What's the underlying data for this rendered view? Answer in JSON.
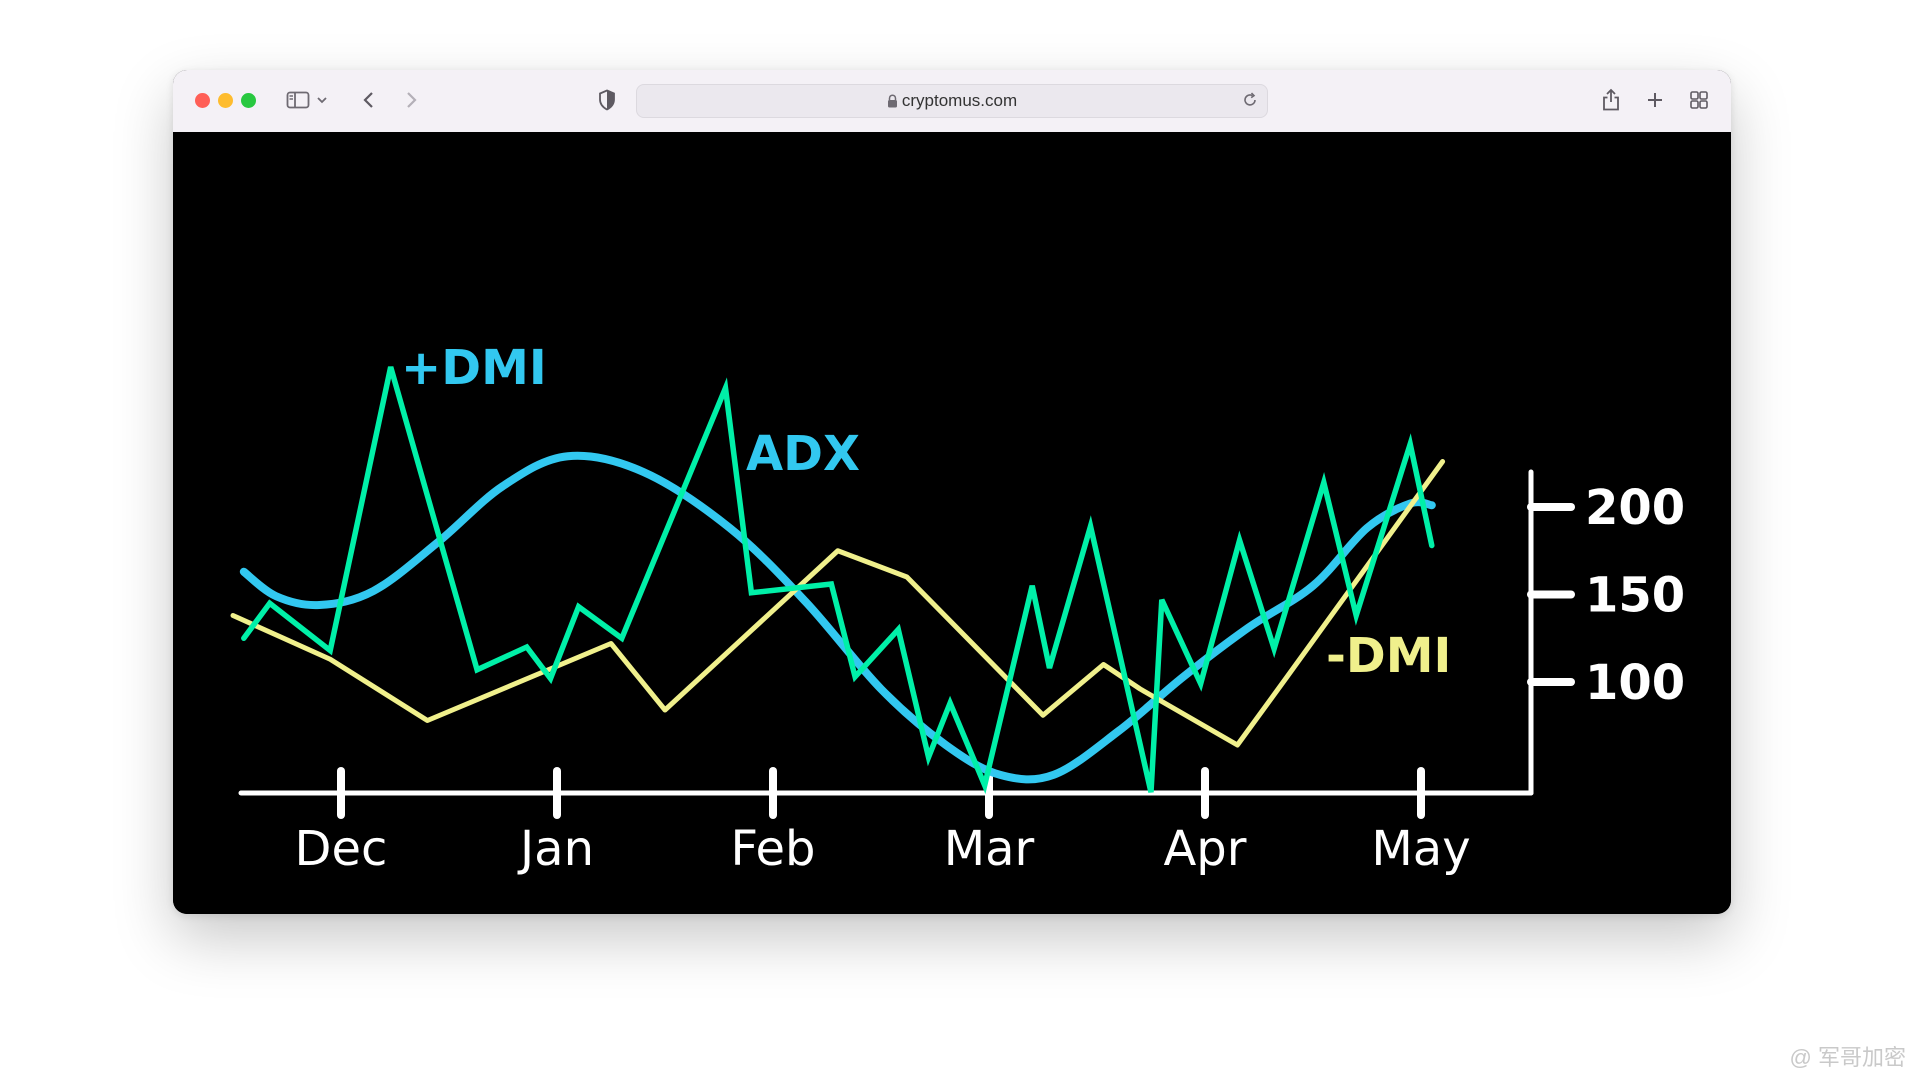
{
  "browser": {
    "url": "cryptomus.com",
    "icons": [
      "sidebar-icon",
      "chevron-down-icon",
      "back-icon",
      "forward-icon",
      "shield-icon",
      "lock-icon",
      "reload-icon",
      "share-icon",
      "new-tab-icon",
      "tab-overview-icon"
    ]
  },
  "chart_data": {
    "type": "line",
    "title": "",
    "xlabel": "",
    "ylabel": "",
    "x_ticks": [
      "Dec",
      "Jan",
      "Feb",
      "Mar",
      "Apr",
      "May"
    ],
    "y_ticks": [
      100,
      150,
      200
    ],
    "colors": {
      "adx": "#00f0a8",
      "plus_dmi": "#32c8f0",
      "minus_dmi": "#f0f08c",
      "axis": "#ffffff"
    },
    "series": [
      {
        "name": "ADX",
        "color": "#00f0a8",
        "points": [
          [
            -0.45,
            125
          ],
          [
            -0.33,
            145
          ],
          [
            -0.05,
            118
          ],
          [
            0.23,
            280
          ],
          [
            0.63,
            107
          ],
          [
            0.86,
            120
          ],
          [
            0.97,
            102
          ],
          [
            1.1,
            143
          ],
          [
            1.3,
            125
          ],
          [
            1.78,
            268
          ],
          [
            1.9,
            151
          ],
          [
            2.27,
            156
          ],
          [
            2.38,
            103
          ],
          [
            2.58,
            130
          ],
          [
            2.72,
            57
          ],
          [
            2.82,
            88
          ],
          [
            2.98,
            41
          ],
          [
            3.2,
            155
          ],
          [
            3.28,
            108
          ],
          [
            3.47,
            189
          ],
          [
            3.75,
            37
          ],
          [
            3.8,
            147
          ],
          [
            3.98,
            99
          ],
          [
            4.16,
            181
          ],
          [
            4.32,
            119
          ],
          [
            4.55,
            214
          ],
          [
            4.7,
            138
          ],
          [
            4.95,
            236
          ],
          [
            5.05,
            178
          ]
        ]
      },
      {
        "name": "+DMI",
        "color": "#32c8f0",
        "points": [
          [
            -0.45,
            163
          ],
          [
            -0.3,
            149
          ],
          [
            -0.1,
            144
          ],
          [
            0.15,
            152
          ],
          [
            0.45,
            180
          ],
          [
            0.75,
            212
          ],
          [
            1.05,
            229
          ],
          [
            1.4,
            220
          ],
          [
            1.8,
            188
          ],
          [
            2.15,
            146
          ],
          [
            2.5,
            96
          ],
          [
            2.8,
            64
          ],
          [
            3.05,
            47
          ],
          [
            3.3,
            47
          ],
          [
            3.6,
            72
          ],
          [
            3.9,
            103
          ],
          [
            4.2,
            131
          ],
          [
            4.5,
            155
          ],
          [
            4.75,
            188
          ],
          [
            4.95,
            202
          ],
          [
            5.05,
            201
          ]
        ]
      },
      {
        "name": "-DMI",
        "color": "#f0f08c",
        "points": [
          [
            -0.5,
            138
          ],
          [
            -0.05,
            113
          ],
          [
            0.4,
            78
          ],
          [
            1.25,
            122
          ],
          [
            1.5,
            84
          ],
          [
            2.3,
            175
          ],
          [
            2.62,
            160
          ],
          [
            3.25,
            81
          ],
          [
            3.53,
            110
          ],
          [
            3.7,
            96
          ],
          [
            4.15,
            64
          ],
          [
            4.38,
            103
          ],
          [
            5.1,
            226
          ]
        ]
      }
    ]
  },
  "watermark": "@ 军哥加密"
}
